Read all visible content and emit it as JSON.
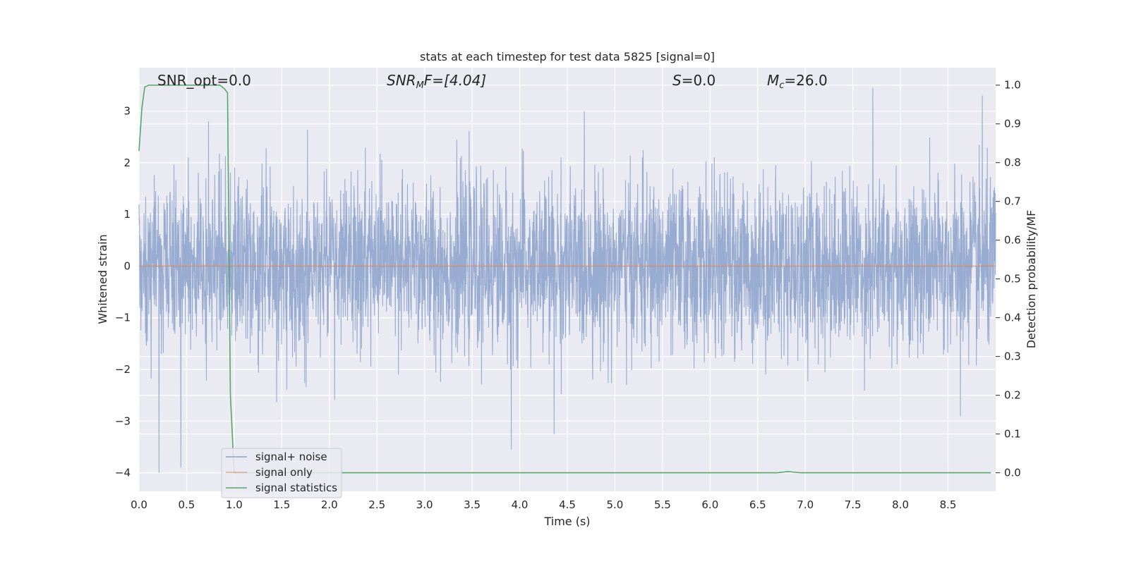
{
  "chart_data": {
    "type": "line",
    "title": "stats at each timestep for test data 5825 [signal=0]",
    "xlabel": "Time (s)",
    "ylabel_left": "Whitened strain",
    "ylabel_right": "Detection probability/MF",
    "xlim": [
      0.0,
      9.0
    ],
    "ylim_left": [
      -4.36,
      3.84
    ],
    "ylim_right": [
      -0.048,
      1.045
    ],
    "x_ticks": [
      0.0,
      0.5,
      1.0,
      1.5,
      2.0,
      2.5,
      3.0,
      3.5,
      4.0,
      4.5,
      5.0,
      5.5,
      6.0,
      6.5,
      7.0,
      7.5,
      8.0,
      8.5
    ],
    "x_tick_labels": [
      "0.0",
      "0.5",
      "1.0",
      "1.5",
      "2.0",
      "2.5",
      "3.0",
      "3.5",
      "4.0",
      "4.5",
      "5.0",
      "5.5",
      "6.0",
      "6.5",
      "7.0",
      "7.5",
      "8.0",
      "8.5"
    ],
    "y_left_ticks": [
      -4,
      -3,
      -2,
      -1,
      0,
      1,
      2,
      3
    ],
    "y_left_tick_labels": [
      "−4",
      "−3",
      "−2",
      "−1",
      "0",
      "1",
      "2",
      "3"
    ],
    "y_right_ticks": [
      0.0,
      0.1,
      0.2,
      0.3,
      0.4,
      0.5,
      0.6,
      0.7,
      0.8,
      0.9,
      1.0
    ],
    "y_right_tick_labels": [
      "0.0",
      "0.1",
      "0.2",
      "0.3",
      "0.4",
      "0.5",
      "0.6",
      "0.7",
      "0.8",
      "0.9",
      "1.0"
    ],
    "grid": true,
    "legend_placement": "lower-left",
    "annotations": {
      "snr_opt": "SNR_opt=0.0",
      "snr_mf_base": "SNR",
      "snr_mf_sub": "M",
      "snr_mf_rest": "F=[4.04]",
      "s_main": "S",
      "s_rest": "=0.0",
      "mc_main": "M",
      "mc_sub": "c",
      "mc_rest": "=26.0"
    },
    "series": [
      {
        "name": "signal+ noise",
        "color": "#8fa4cc",
        "axis": "left",
        "style": "whitened gaussian noise, approx std 0.8, peaks to +3.5 and -4.0",
        "spikes": [
          {
            "x": 0.21,
            "y": -4.0
          },
          {
            "x": 0.44,
            "y": -3.9
          },
          {
            "x": 0.73,
            "y": 2.8
          },
          {
            "x": 3.91,
            "y": -3.55
          },
          {
            "x": 4.36,
            "y": -3.25
          },
          {
            "x": 7.71,
            "y": 3.45
          },
          {
            "x": 8.86,
            "y": 3.3
          },
          {
            "x": 8.63,
            "y": -2.9
          }
        ]
      },
      {
        "name": "signal only",
        "color": "#dd8452",
        "axis": "left",
        "x": [
          0.0,
          9.0
        ],
        "y": [
          0.0,
          0.0
        ]
      },
      {
        "name": "signal statistics",
        "color": "#55a868",
        "axis": "right",
        "x": [
          0.0,
          0.03,
          0.06,
          0.1,
          0.15,
          0.3,
          0.5,
          0.7,
          0.85,
          0.9,
          0.93,
          0.96,
          1.0,
          2.0,
          4.0,
          6.0,
          6.7,
          6.82,
          6.95,
          8.0,
          8.95
        ],
        "y": [
          0.83,
          0.94,
          0.995,
          1.0,
          1.0,
          1.0,
          1.0,
          1.0,
          1.0,
          0.99,
          0.98,
          0.2,
          0.0,
          0.0,
          0.0,
          0.0,
          0.0,
          0.003,
          0.0,
          0.0,
          0.0
        ]
      }
    ]
  }
}
